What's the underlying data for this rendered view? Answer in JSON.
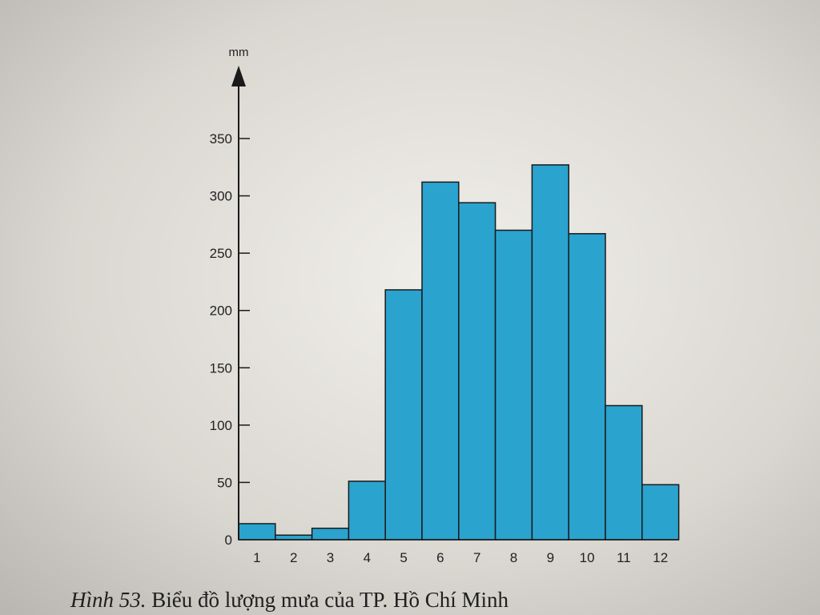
{
  "chart_data": {
    "type": "bar",
    "ylabel": "mm",
    "ylim": [
      0,
      380
    ],
    "yticks": [
      0,
      50,
      100,
      150,
      200,
      250,
      300,
      350
    ],
    "categories": [
      "1",
      "2",
      "3",
      "4",
      "5",
      "6",
      "7",
      "8",
      "9",
      "10",
      "11",
      "12"
    ],
    "values": [
      14,
      4,
      10,
      51,
      218,
      312,
      294,
      270,
      327,
      267,
      117,
      48
    ],
    "bar_color": "#2aa3cf",
    "grid": false
  },
  "caption": {
    "figure": "Hình 53.",
    "text": "Biểu đồ lượng mưa của TP. Hồ Chí Minh"
  }
}
